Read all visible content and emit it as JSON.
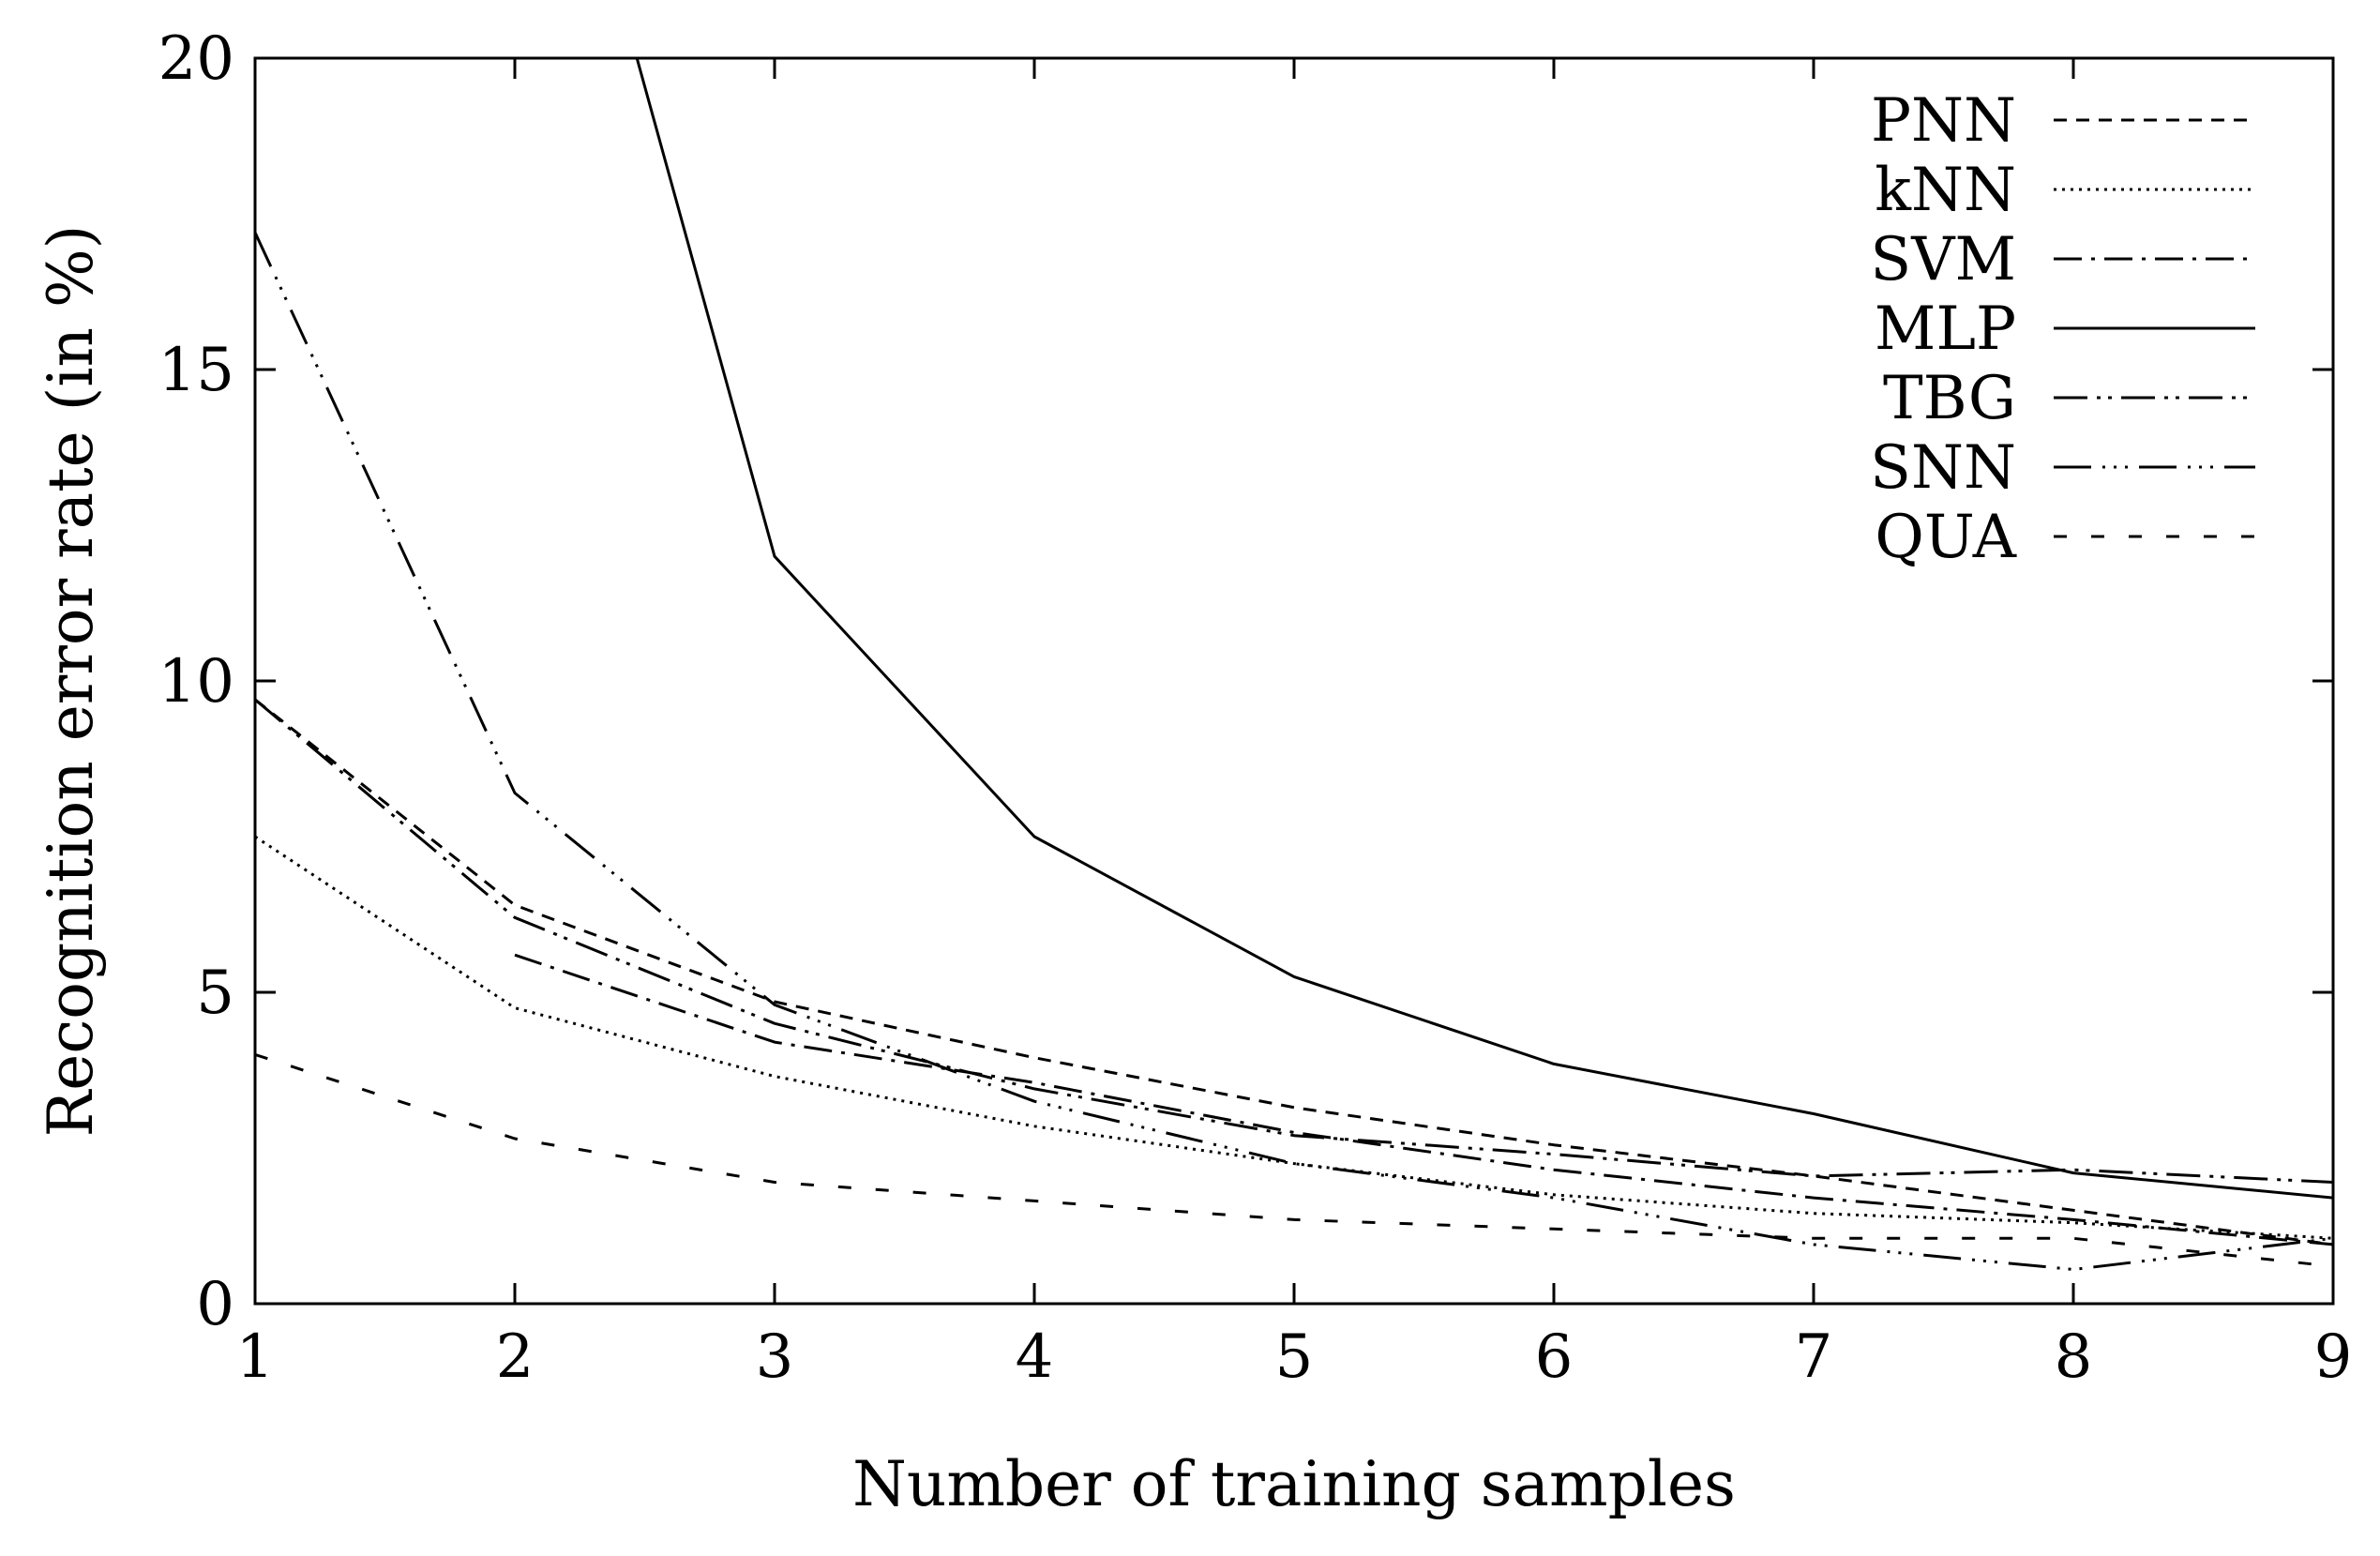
{
  "chart_data": {
    "type": "line",
    "title": "",
    "xlabel": "Number of training samples",
    "ylabel": "Recognition error rate (in %)",
    "xlim": [
      1,
      9
    ],
    "ylim": [
      0,
      20
    ],
    "xticks": [
      1,
      2,
      3,
      4,
      5,
      6,
      7,
      8,
      9
    ],
    "yticks": [
      0,
      5,
      10,
      15,
      20
    ],
    "xtick_labels": [
      "1",
      "2",
      "3",
      "4",
      "5",
      "6",
      "7",
      "8",
      "9"
    ],
    "ytick_labels": [
      "0",
      "5",
      "10",
      "15",
      "20"
    ],
    "grid": false,
    "legend_position": "top-right",
    "x": [
      1,
      2,
      3,
      4,
      5,
      6,
      7,
      8,
      9
    ],
    "series": [
      {
        "name": "PNN",
        "style": "dashed",
        "x": [
          1,
          2,
          3,
          4,
          5,
          6,
          7,
          8,
          9
        ],
        "values": [
          9.7,
          6.4,
          4.85,
          3.95,
          3.15,
          2.55,
          2.05,
          1.5,
          0.95
        ]
      },
      {
        "name": "kNN",
        "style": "dotted",
        "x": [
          1,
          2,
          3,
          4,
          5,
          6,
          7,
          8,
          9
        ],
        "values": [
          7.5,
          4.75,
          3.65,
          2.85,
          2.25,
          1.75,
          1.45,
          1.3,
          1.05
        ]
      },
      {
        "name": "SVM",
        "style": "dash-dot",
        "x": [
          2,
          3,
          4,
          5,
          6,
          7,
          8,
          9
        ],
        "values": [
          5.6,
          4.2,
          3.55,
          2.75,
          2.15,
          1.7,
          1.35,
          0.95
        ]
      },
      {
        "name": "MLP",
        "style": "solid",
        "x": [
          2.47,
          3,
          4,
          5,
          6,
          7,
          8,
          9
        ],
        "values": [
          20,
          12.0,
          7.5,
          5.25,
          3.85,
          3.05,
          2.1,
          1.7
        ]
      },
      {
        "name": "TBG",
        "style": "long-dash-dot-dot",
        "x": [
          1,
          2,
          3,
          4,
          5,
          6,
          7,
          8,
          9
        ],
        "values": [
          9.7,
          6.2,
          4.5,
          3.45,
          2.7,
          2.4,
          2.05,
          2.15,
          1.95
        ]
      },
      {
        "name": "SNN",
        "style": "long-dash-dot-dot-fine",
        "x": [
          1,
          2,
          3,
          4,
          5,
          6,
          7,
          8,
          9
        ],
        "values": [
          17.2,
          8.2,
          4.8,
          3.25,
          2.25,
          1.7,
          0.95,
          0.55,
          1.05
        ]
      },
      {
        "name": "QUA",
        "style": "sparse-dash",
        "x": [
          1,
          2,
          3,
          4,
          5,
          6,
          7,
          8,
          9
        ],
        "values": [
          4.0,
          2.65,
          1.95,
          1.65,
          1.35,
          1.2,
          1.05,
          1.05,
          0.6
        ]
      }
    ]
  }
}
